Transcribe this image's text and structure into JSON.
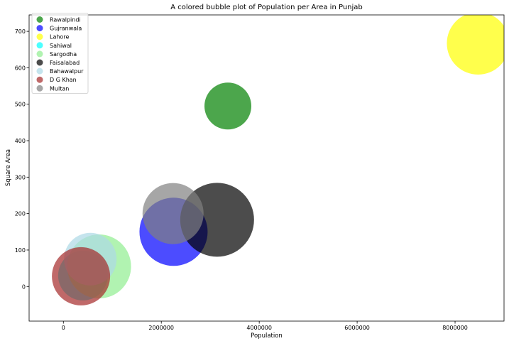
{
  "chart_data": {
    "type": "scatter",
    "title": "A colored bubble plot of Population per Area in Punjab",
    "xlabel": "Population",
    "ylabel": "Square Area",
    "xlim": [
      -700000,
      9000000
    ],
    "ylim": [
      -95,
      745
    ],
    "xticks": [
      0,
      2000000,
      4000000,
      6000000,
      8000000
    ],
    "xtick_labels": [
      "0",
      "2000000",
      "4000000",
      "6000000",
      "8000000"
    ],
    "yticks": [
      0,
      100,
      200,
      300,
      400,
      500,
      600,
      700
    ],
    "ytick_labels": [
      "0",
      "100",
      "200",
      "300",
      "400",
      "500",
      "600",
      "700"
    ],
    "legend_position": "top-left",
    "grid": false,
    "series": [
      {
        "name": "Rawalpindi",
        "color": "#008000",
        "x": 3360000,
        "y": 495,
        "size": 33
      },
      {
        "name": "Gujranwala",
        "color": "#0000ff",
        "x": 2250000,
        "y": 150,
        "size": 48
      },
      {
        "name": "Lahore",
        "color": "#ffff00",
        "x": 8470000,
        "y": 667,
        "size": 44
      },
      {
        "name": "Sahiwal",
        "color": "#00ffff",
        "x": 400000,
        "y": 30,
        "size": 35
      },
      {
        "name": "Sargodha",
        "color": "#90ee90",
        "x": 730000,
        "y": 55,
        "size": 45
      },
      {
        "name": "Faisalabad",
        "color": "#000000",
        "x": 3140000,
        "y": 183,
        "size": 52
      },
      {
        "name": "Bahawalpur",
        "color": "#add8e6",
        "x": 550000,
        "y": 75,
        "size": 37
      },
      {
        "name": "D G Khan",
        "color": "#a52a2a",
        "x": 360000,
        "y": 28,
        "size": 41
      },
      {
        "name": "Multan",
        "color": "#808080",
        "x": 2240000,
        "y": 200,
        "size": 43
      }
    ],
    "alpha": 0.7
  }
}
